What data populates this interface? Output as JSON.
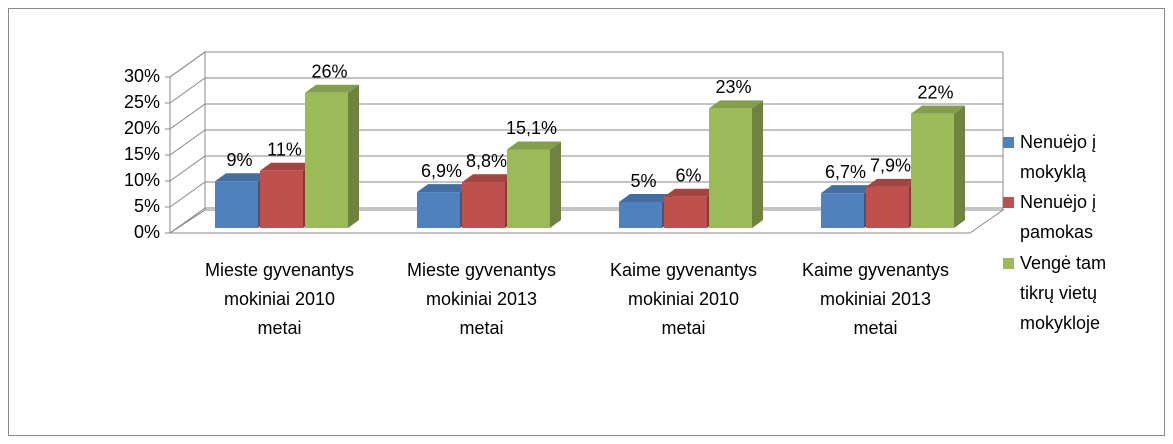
{
  "chart_data": {
    "type": "bar3d",
    "categories": [
      "Mieste gyvenantys mokiniai 2010 metai",
      "Mieste gyvenantys mokiniai 2013 metai",
      "Kaime gyvenantys mokiniai 2010 metai",
      "Kaime gyvenantys mokiniai 2013 metai"
    ],
    "series": [
      {
        "name": "Nenuėjo į mokyklą",
        "color": "#4f81bd",
        "values": [
          9,
          6.9,
          5,
          6.7
        ],
        "value_labels": [
          "9%",
          "6,9%",
          "5%",
          "6,7%"
        ]
      },
      {
        "name": "Nenuėjo į pamokas",
        "color": "#c0504d",
        "values": [
          11,
          8.8,
          6,
          7.9
        ],
        "value_labels": [
          "11%",
          "8,8%",
          "6%",
          "7,9%"
        ]
      },
      {
        "name": "Vengė tam tikrų vietų mokykloje",
        "color": "#9bbb59",
        "values": [
          26,
          15.1,
          23,
          22
        ],
        "value_labels": [
          "26%",
          "15,1%",
          "23%",
          "22%"
        ]
      }
    ],
    "ylim": [
      0,
      30
    ],
    "yticks": [
      {
        "value": 0,
        "label": "0%"
      },
      {
        "value": 5,
        "label": "5%"
      },
      {
        "value": 10,
        "label": "10%"
      },
      {
        "value": 15,
        "label": "15%"
      },
      {
        "value": 20,
        "label": "20%"
      },
      {
        "value": 25,
        "label": "25%"
      },
      {
        "value": 30,
        "label": "30%"
      }
    ],
    "grid": true,
    "legend": "right"
  }
}
